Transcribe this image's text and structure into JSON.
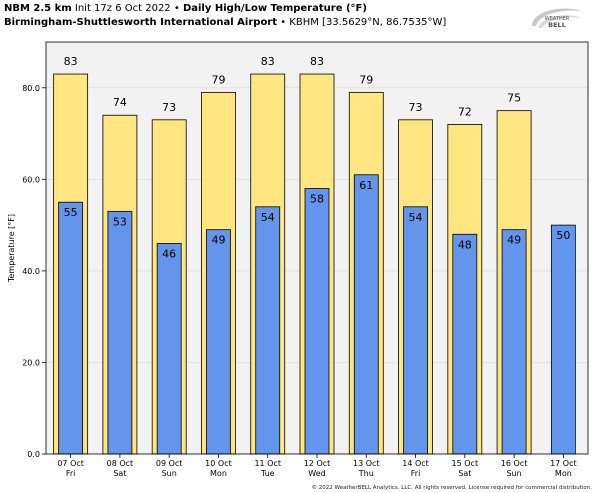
{
  "header": {
    "model": "NBM 2.5 km",
    "init": "Init 17z 6 Oct 2022",
    "bullet": "•",
    "title": "Daily High/Low Temperature (°F)",
    "station": "Birmingham-Shuttlesworth International Airport",
    "station_meta": "• KBHM [33.5629°N, 86.7535°W]"
  },
  "logo": {
    "line1": "WEATHER",
    "line2": "BELL"
  },
  "footer": "© 2022 WeatherBELL Analytics, LLC. All rights reserved. License required for commercial distribution.",
  "colors": {
    "high": "#ffe680",
    "low": "#6495ed",
    "plot_bg": "#f2f2f2",
    "edge": "#000000"
  },
  "chart_data": {
    "type": "bar",
    "ylabel": "Temperature [°F]",
    "ylim": [
      0,
      90
    ],
    "yticks": [
      0,
      20,
      40,
      60,
      80
    ],
    "ytick_labels": [
      "0.0",
      "20.0",
      "40.0",
      "60.0",
      "80.0"
    ],
    "categories": [
      [
        "07 Oct",
        "Fri"
      ],
      [
        "08 Oct",
        "Sat"
      ],
      [
        "09 Oct",
        "Sun"
      ],
      [
        "10 Oct",
        "Mon"
      ],
      [
        "11 Oct",
        "Tue"
      ],
      [
        "12 Oct",
        "Wed"
      ],
      [
        "13 Oct",
        "Thu"
      ],
      [
        "14 Oct",
        "Fri"
      ],
      [
        "15 Oct",
        "Sat"
      ],
      [
        "16 Oct",
        "Sun"
      ],
      [
        "17 Oct",
        "Mon"
      ]
    ],
    "series": [
      {
        "name": "High",
        "values": [
          83,
          74,
          73,
          79,
          83,
          83,
          79,
          73,
          72,
          75,
          null
        ]
      },
      {
        "name": "Low",
        "values": [
          55,
          53,
          46,
          49,
          54,
          58,
          61,
          54,
          48,
          49,
          50
        ]
      }
    ]
  }
}
